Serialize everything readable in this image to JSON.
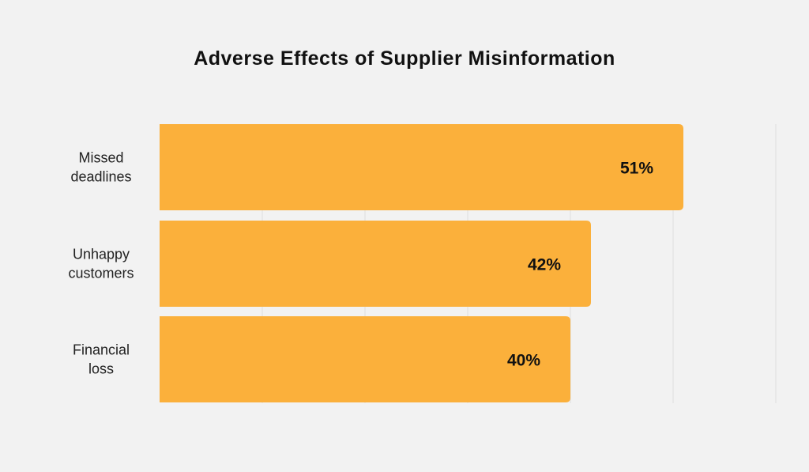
{
  "chart_data": {
    "type": "bar",
    "orientation": "horizontal",
    "title": "Adverse Effects of Supplier Misinformation",
    "categories": [
      [
        "Missed",
        "deadlines"
      ],
      [
        "Unhappy",
        "customers"
      ],
      [
        "Financial",
        "loss"
      ]
    ],
    "values": [
      51,
      42,
      40
    ],
    "value_labels": [
      "51%",
      "42%",
      "40%"
    ],
    "xlim": [
      0,
      60
    ],
    "grid": true,
    "bar_color": "#fbb03b",
    "grid_color": "#dddddd"
  }
}
